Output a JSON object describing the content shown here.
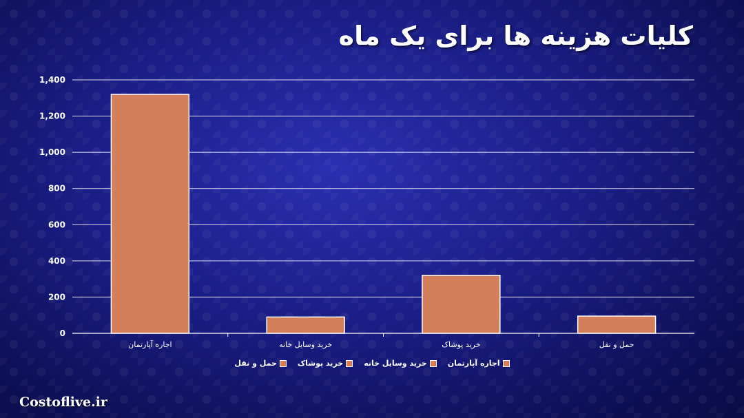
{
  "header": {
    "title": "کلیات هزینه ها برای یک ماه"
  },
  "footer": {
    "site": "Costoflive.ir"
  },
  "colors": {
    "bar": "#D47F5B",
    "bar_stroke": "#FFFFFF",
    "grid": "#FFFFFF",
    "text": "#FFFFFF"
  },
  "chart_data": {
    "type": "bar",
    "categories": [
      "اجاره آپارتمان",
      "خرید وسایل خانه",
      "خرید پوشاک",
      "حمل و نقل"
    ],
    "values": [
      1320,
      90,
      320,
      95
    ],
    "ylim": [
      0,
      1400
    ],
    "yticks": [
      0,
      200,
      400,
      600,
      800,
      1000,
      1200,
      1400
    ],
    "ytick_labels": [
      "0",
      "200",
      "400",
      "600",
      "800",
      "1,000",
      "1,200",
      "1,400"
    ],
    "grid": true,
    "legend": {
      "placement": "bottom",
      "entries": [
        "اجاره آپارتمان",
        "خرید وسایل خانه",
        "خرید پوشاک",
        "حمل و نقل"
      ]
    }
  }
}
